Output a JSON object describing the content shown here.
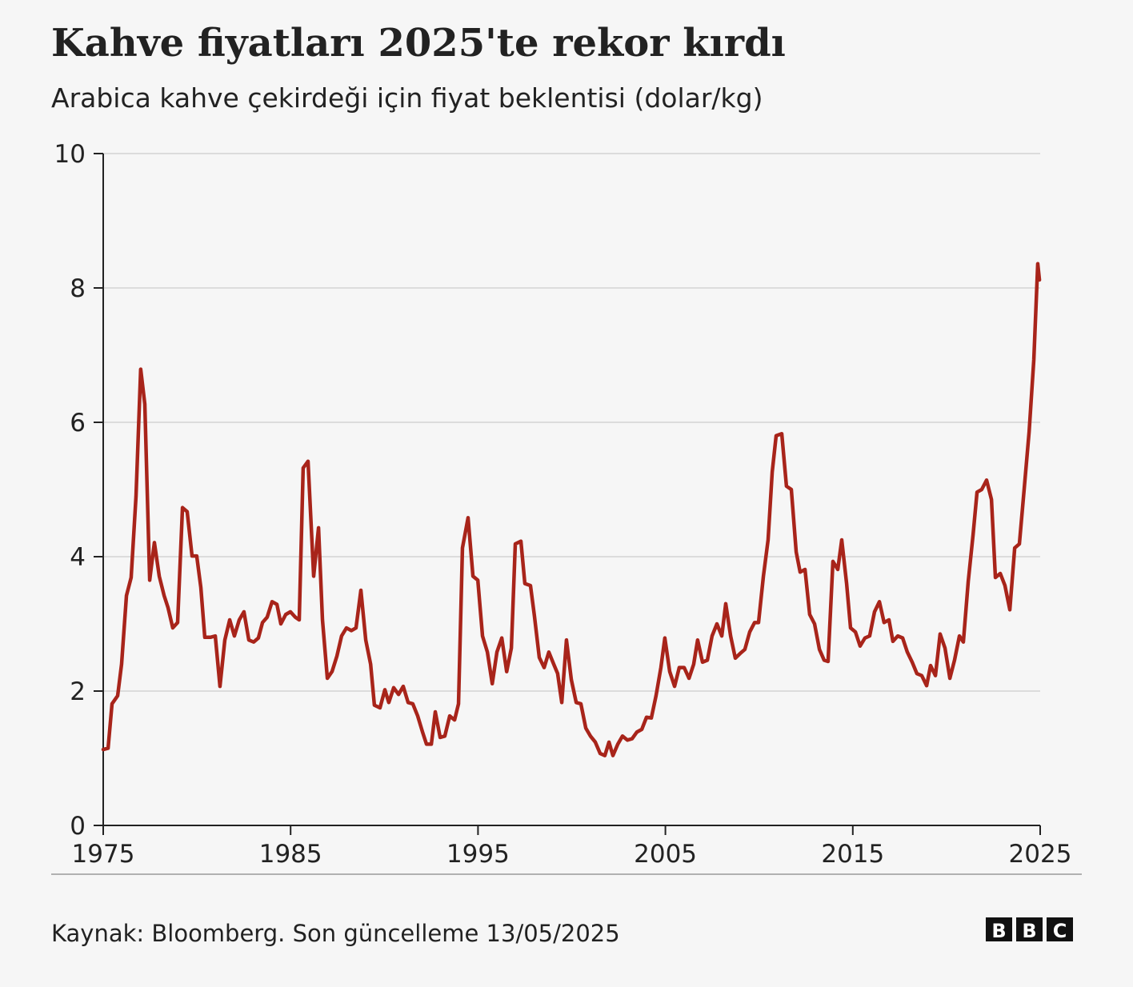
{
  "chart_data": {
    "type": "line",
    "title": "Kahve fiyatları 2025'te rekor kırdı",
    "subtitle": "Arabica kahve çekirdeği için fiyat beklentisi (dolar/kg)",
    "source": "Kaynak: Bloomberg. Son güncelleme 13/05/2025",
    "logo": [
      "B",
      "B",
      "C"
    ],
    "color": "#a8241a",
    "grid": true,
    "xlim": [
      1975,
      2025
    ],
    "xticks": [
      1975,
      1985,
      1995,
      2005,
      2015,
      2025
    ],
    "ylim": [
      0,
      10
    ],
    "yticks": [
      0,
      2,
      4,
      6,
      8,
      10
    ],
    "x": [
      1975.0,
      1975.26,
      1975.47,
      1975.77,
      1975.98,
      1976.24,
      1976.49,
      1976.75,
      1977.0,
      1977.22,
      1977.48,
      1977.73,
      1977.99,
      1978.25,
      1978.46,
      1978.71,
      1978.97,
      1979.23,
      1979.48,
      1979.74,
      1979.99,
      1980.21,
      1980.42,
      1980.72,
      1980.98,
      1981.23,
      1981.49,
      1981.75,
      1982.0,
      1982.26,
      1982.51,
      1982.77,
      1983.03,
      1983.28,
      1983.5,
      1983.75,
      1984.01,
      1984.27,
      1984.48,
      1984.74,
      1984.99,
      1985.25,
      1985.46,
      1985.67,
      1985.93,
      1986.23,
      1986.49,
      1986.7,
      1986.96,
      1987.21,
      1987.47,
      1987.72,
      1987.98,
      1988.24,
      1988.49,
      1988.75,
      1989.01,
      1989.27,
      1989.47,
      1989.77,
      1990.03,
      1990.24,
      1990.5,
      1990.76,
      1991.01,
      1991.27,
      1991.52,
      1991.78,
      1992.04,
      1992.25,
      1992.51,
      1992.72,
      1992.98,
      1993.23,
      1993.49,
      1993.75,
      1993.96,
      1994.17,
      1994.47,
      1994.73,
      1994.99,
      1995.24,
      1995.5,
      1995.76,
      1996.01,
      1996.27,
      1996.53,
      1996.78,
      1996.99,
      1997.29,
      1997.5,
      1997.8,
      1998.01,
      1998.27,
      1998.53,
      1998.78,
      1999.04,
      1999.25,
      1999.47,
      1999.72,
      1999.98,
      2000.24,
      2000.49,
      2000.75,
      2001.0,
      2001.26,
      2001.52,
      2001.77,
      2001.99,
      2002.2,
      2002.46,
      2002.71,
      2002.97,
      2003.22,
      2003.48,
      2003.74,
      2003.99,
      2004.25,
      2004.5,
      2004.76,
      2004.97,
      2005.23,
      2005.49,
      2005.74,
      2006.0,
      2006.26,
      2006.51,
      2006.72,
      2006.98,
      2007.24,
      2007.49,
      2007.75,
      2008.01,
      2008.22,
      2008.48,
      2008.73,
      2008.99,
      2009.24,
      2009.5,
      2009.76,
      2009.97,
      2010.23,
      2010.48,
      2010.7,
      2010.91,
      2011.21,
      2011.46,
      2011.72,
      2011.98,
      2012.19,
      2012.45,
      2012.7,
      2012.96,
      2013.22,
      2013.47,
      2013.68,
      2013.94,
      2014.2,
      2014.41,
      2014.67,
      2014.88,
      2015.14,
      2015.39,
      2015.65,
      2015.9,
      2016.16,
      2016.42,
      2016.67,
      2016.93,
      2017.14,
      2017.4,
      2017.66,
      2017.91,
      2018.17,
      2018.42,
      2018.68,
      2018.94,
      2019.15,
      2019.41,
      2019.66,
      2019.92,
      2020.18,
      2020.43,
      2020.69,
      2020.9,
      2021.16,
      2021.42,
      2021.63,
      2021.88,
      2022.14,
      2022.4,
      2022.61,
      2022.87,
      2023.12,
      2023.38,
      2023.64,
      2023.89,
      2024.15,
      2024.41,
      2024.66,
      2024.87,
      2024.96
    ],
    "values": [
      1.13,
      1.15,
      1.81,
      1.93,
      2.4,
      3.42,
      3.69,
      4.9,
      6.79,
      6.27,
      3.65,
      4.21,
      3.71,
      3.42,
      3.24,
      2.94,
      3.02,
      4.73,
      4.67,
      4.01,
      4.01,
      3.54,
      2.8,
      2.8,
      2.82,
      2.07,
      2.76,
      3.06,
      2.82,
      3.06,
      3.18,
      2.76,
      2.73,
      2.79,
      3.02,
      3.1,
      3.33,
      3.29,
      3.0,
      3.14,
      3.18,
      3.1,
      3.06,
      5.32,
      5.42,
      3.71,
      4.43,
      3.06,
      2.19,
      2.29,
      2.52,
      2.82,
      2.94,
      2.9,
      2.94,
      3.5,
      2.76,
      2.4,
      1.79,
      1.75,
      2.02,
      1.83,
      2.05,
      1.95,
      2.07,
      1.83,
      1.81,
      1.63,
      1.39,
      1.21,
      1.21,
      1.69,
      1.31,
      1.33,
      1.63,
      1.57,
      1.81,
      4.13,
      4.58,
      3.71,
      3.65,
      2.82,
      2.58,
      2.11,
      2.58,
      2.79,
      2.29,
      2.64,
      4.19,
      4.23,
      3.6,
      3.57,
      3.12,
      2.5,
      2.35,
      2.58,
      2.4,
      2.26,
      1.83,
      2.76,
      2.17,
      1.83,
      1.81,
      1.45,
      1.33,
      1.24,
      1.07,
      1.04,
      1.24,
      1.04,
      1.21,
      1.33,
      1.27,
      1.29,
      1.39,
      1.43,
      1.61,
      1.6,
      1.93,
      2.35,
      2.79,
      2.29,
      2.07,
      2.35,
      2.35,
      2.19,
      2.4,
      2.76,
      2.43,
      2.46,
      2.82,
      3.0,
      2.82,
      3.3,
      2.82,
      2.49,
      2.56,
      2.62,
      2.88,
      3.02,
      3.02,
      3.71,
      4.25,
      5.26,
      5.8,
      5.83,
      5.05,
      5.0,
      4.07,
      3.77,
      3.81,
      3.14,
      3.0,
      2.62,
      2.46,
      2.44,
      3.93,
      3.81,
      4.25,
      3.6,
      2.94,
      2.88,
      2.67,
      2.79,
      2.82,
      3.18,
      3.33,
      3.02,
      3.06,
      2.74,
      2.82,
      2.79,
      2.58,
      2.43,
      2.26,
      2.23,
      2.08,
      2.38,
      2.23,
      2.85,
      2.64,
      2.19,
      2.46,
      2.82,
      2.73,
      3.63,
      4.33,
      4.96,
      5.0,
      5.14,
      4.85,
      3.69,
      3.75,
      3.57,
      3.21,
      4.13,
      4.19,
      5.02,
      5.86,
      6.93,
      8.36,
      8.12
    ]
  }
}
